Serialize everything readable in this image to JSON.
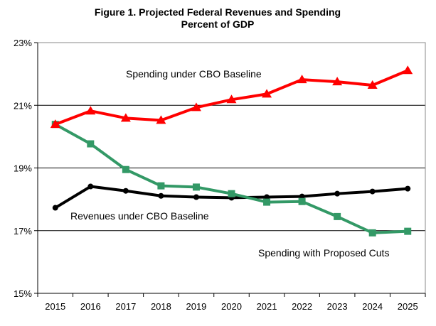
{
  "chart_data": {
    "type": "line",
    "title": "Figure 1. Projected Federal Revenues and Spending",
    "subtitle": "Percent of GDP",
    "xlabel": "",
    "ylabel": "",
    "categories": [
      "2015",
      "2016",
      "2017",
      "2018",
      "2019",
      "2020",
      "2021",
      "2022",
      "2023",
      "2024",
      "2025"
    ],
    "ylim": [
      15,
      23
    ],
    "yticks": [
      "15%",
      "17%",
      "19%",
      "21%",
      "23%"
    ],
    "ytick_values": [
      15,
      17,
      19,
      21,
      23
    ],
    "grid": "horizontal",
    "legend": "none (inline labels)",
    "series": [
      {
        "name": "Spending under CBO Baseline",
        "color": "#ff0000",
        "marker": "triangle",
        "values": [
          20.39,
          20.82,
          20.59,
          20.52,
          20.93,
          21.18,
          21.36,
          21.82,
          21.75,
          21.64,
          22.11
        ]
      },
      {
        "name": "Revenues under CBO Baseline",
        "color": "#000000",
        "marker": "circle",
        "values": [
          17.73,
          18.41,
          18.27,
          18.11,
          18.07,
          18.05,
          18.07,
          18.09,
          18.18,
          18.25,
          18.34
        ]
      },
      {
        "name": "Spending with Proposed Cuts",
        "color": "#339966",
        "marker": "square",
        "values": [
          20.39,
          19.77,
          18.95,
          18.43,
          18.39,
          18.18,
          17.91,
          17.93,
          17.45,
          16.93,
          16.98
        ]
      }
    ]
  }
}
